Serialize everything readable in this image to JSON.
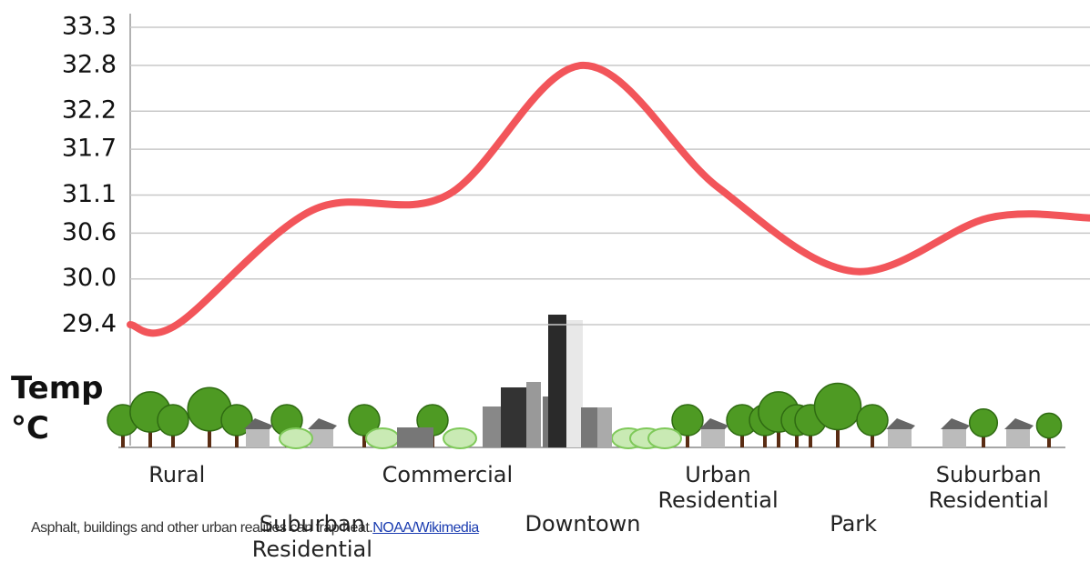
{
  "chart_data": {
    "type": "line",
    "y_label": "Temp\n°C",
    "categories": [
      "Rural",
      "Suburban Residential",
      "Commercial",
      "Downtown",
      "Urban Residential",
      "Park",
      "Suburban Residential"
    ],
    "values": [
      29.4,
      30.9,
      31.1,
      32.8,
      31.2,
      30.1,
      30.8
    ],
    "color": "#f2555a",
    "ylim": [
      29.4,
      33.3
    ],
    "yticks": [
      33.3,
      32.8,
      32.2,
      31.7,
      31.1,
      30.6,
      {
        "value": 30,
        "label": "30.0"
      },
      29.4
    ],
    "grid": true
  },
  "caption": "Asphalt, buildings and other urban realities can trap heat.",
  "credit": "NOAA/Wikimedia"
}
